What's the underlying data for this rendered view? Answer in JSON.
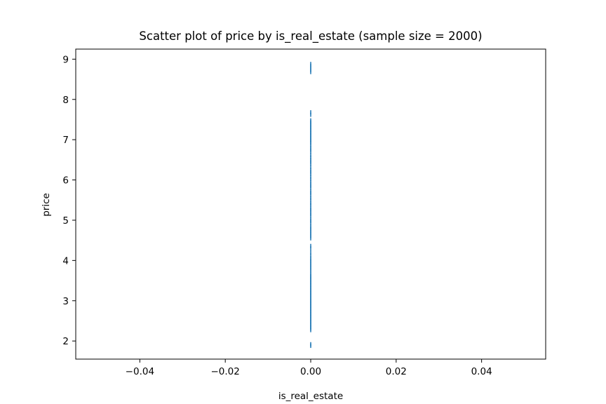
{
  "chart_data": {
    "type": "scatter",
    "title": "Scatter plot of price by is_real_estate (sample size = 2000)",
    "xlabel": "is_real_estate",
    "ylabel": "price",
    "xlim": [
      -0.055,
      0.055
    ],
    "ylim": [
      1.55,
      9.25
    ],
    "xticks": [
      -0.04,
      -0.02,
      0.0,
      0.02,
      0.04
    ],
    "xtick_labels": [
      "−0.04",
      "−0.02",
      "0.00",
      "0.02",
      "0.04"
    ],
    "yticks": [
      2,
      3,
      4,
      5,
      6,
      7,
      8,
      9
    ],
    "ytick_labels": [
      "2",
      "3",
      "4",
      "5",
      "6",
      "7",
      "8",
      "9"
    ],
    "grid": false,
    "legend": "none",
    "marker": "|",
    "sample_size": 2000,
    "series": [
      {
        "color": "#1f77b4",
        "x_value": 0.0,
        "y_values": [
          1.88,
          1.92,
          2.27,
          2.31,
          2.35,
          2.39,
          2.43,
          2.47,
          2.51,
          2.55,
          2.59,
          2.63,
          2.67,
          2.71,
          2.75,
          2.79,
          2.83,
          2.87,
          2.91,
          2.95,
          2.99,
          3.03,
          3.07,
          3.11,
          3.15,
          3.19,
          3.23,
          3.27,
          3.31,
          3.35,
          3.39,
          3.43,
          3.47,
          3.51,
          3.55,
          3.59,
          3.63,
          3.68,
          3.75,
          3.8,
          3.85,
          3.9,
          3.95,
          4.0,
          4.05,
          4.12,
          4.2,
          4.3,
          4.36,
          4.55,
          4.6,
          4.65,
          4.7,
          4.75,
          4.8,
          4.85,
          4.92,
          4.98,
          5.02,
          5.1,
          5.15,
          5.2,
          5.26,
          5.3,
          5.38,
          5.42,
          5.5,
          5.55,
          5.62,
          5.68,
          5.72,
          5.8,
          5.85,
          5.9,
          5.96,
          6.02,
          6.08,
          6.15,
          6.2,
          6.25,
          6.32,
          6.4,
          6.45,
          6.5,
          6.56,
          6.62,
          6.7,
          6.75,
          6.8,
          6.86,
          6.92,
          6.96,
          7.0,
          7.04,
          7.08,
          7.12,
          7.16,
          7.2,
          7.24,
          7.28,
          7.32,
          7.36,
          7.4,
          7.44,
          7.48,
          7.62,
          7.68,
          8.68,
          8.73,
          8.78,
          8.83,
          8.88
        ]
      }
    ]
  }
}
